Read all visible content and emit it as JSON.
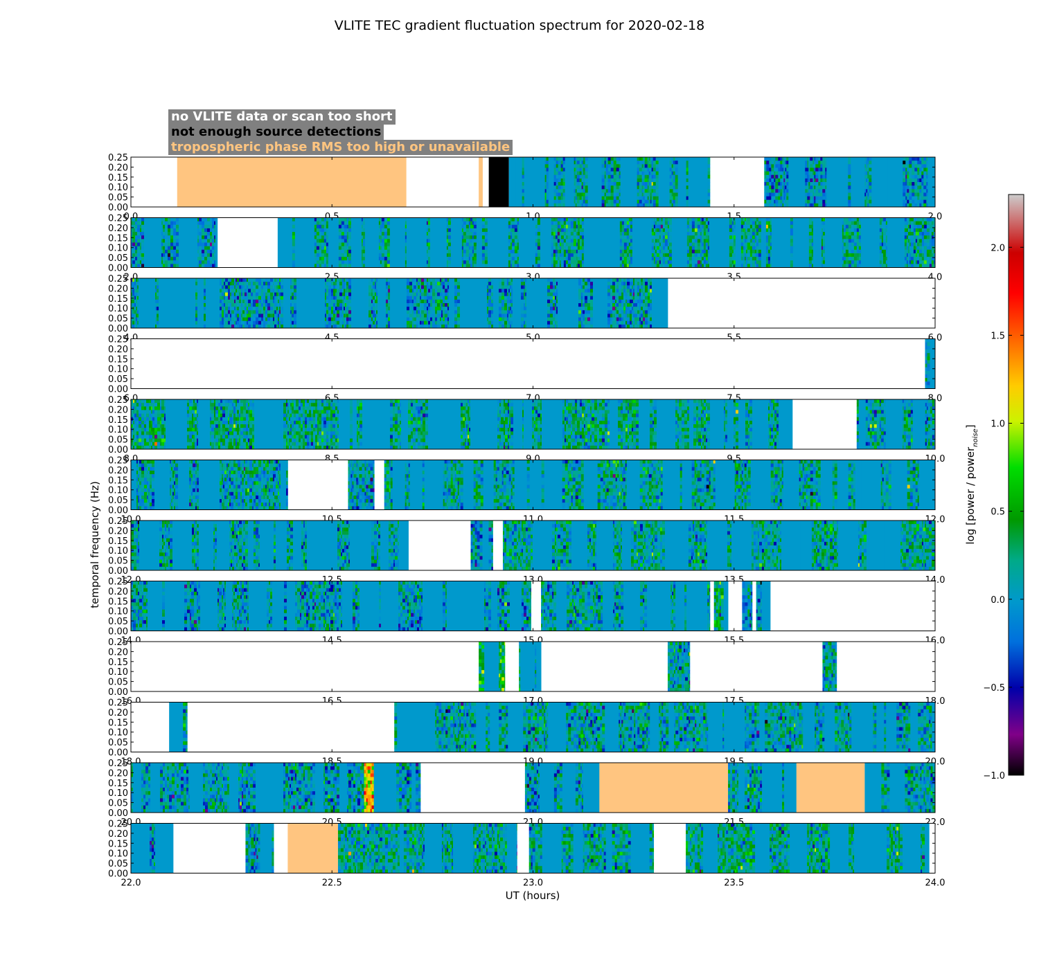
{
  "chart_data": {
    "type": "heatmap",
    "title": "VLITE TEC gradient fluctuation spectrum for 2020-02-18",
    "xlabel": "UT (hours)",
    "ylabel": "temporal frequency (Hz)",
    "ylim": [
      0,
      0.25
    ],
    "yticks": [
      "0.00",
      "0.05",
      "0.10",
      "0.15",
      "0.20",
      "0.25"
    ],
    "colorbar": {
      "label": "log [power / power",
      "label_sub": "noise",
      "label_end": "]",
      "range": [
        -1.0,
        2.3
      ],
      "ticks": [
        "−1.0",
        "−0.5",
        "0.0",
        "0.5",
        "1.0",
        "1.5",
        "2.0"
      ],
      "colormap": "nipy_spectral"
    },
    "legend": [
      {
        "label": "no VLITE data or scan too short",
        "text_color": "#ffffff",
        "fill": "#ffffff"
      },
      {
        "label": "not enough source detections",
        "text_color": "#000000",
        "fill": "#000000"
      },
      {
        "label": "tropospheric phase RMS too high or unavailable",
        "text_color": "#ffc580",
        "fill": "#ffc580"
      }
    ],
    "panels": [
      {
        "xlim": [
          0,
          2
        ],
        "xticks": [
          "0.0",
          "0.5",
          "1.0",
          "1.5",
          "2.0"
        ],
        "segments": [
          {
            "start": 0.0,
            "end": 0.115,
            "state": "none"
          },
          {
            "start": 0.115,
            "end": 0.685,
            "state": "tropo"
          },
          {
            "start": 0.685,
            "end": 0.865,
            "state": "none"
          },
          {
            "start": 0.865,
            "end": 0.875,
            "state": "tropo"
          },
          {
            "start": 0.875,
            "end": 0.89,
            "state": "none"
          },
          {
            "start": 0.89,
            "end": 0.94,
            "state": "nodet"
          },
          {
            "start": 0.94,
            "end": 1.44,
            "state": "data",
            "level": 0.1
          },
          {
            "start": 1.44,
            "end": 1.575,
            "state": "none"
          },
          {
            "start": 1.575,
            "end": 2.0,
            "state": "data",
            "level": 0.0
          }
        ]
      },
      {
        "xlim": [
          2,
          4
        ],
        "xticks": [
          "2.0",
          "2.5",
          "3.0",
          "3.5",
          "4.0"
        ],
        "segments": [
          {
            "start": 2.0,
            "end": 2.215,
            "state": "data",
            "level": 0.05
          },
          {
            "start": 2.215,
            "end": 2.365,
            "state": "none"
          },
          {
            "start": 2.365,
            "end": 4.0,
            "state": "data",
            "level": 0.15
          }
        ]
      },
      {
        "xlim": [
          4,
          6
        ],
        "xticks": [
          "4.0",
          "4.5",
          "5.0",
          "5.5",
          "6.0"
        ],
        "segments": [
          {
            "start": 4.0,
            "end": 5.335,
            "state": "data",
            "level": 0.05
          },
          {
            "start": 5.335,
            "end": 6.0,
            "state": "none"
          }
        ]
      },
      {
        "xlim": [
          6,
          8
        ],
        "xticks": [
          "6.0",
          "6.5",
          "7.0",
          "7.5",
          "8.0"
        ],
        "segments": [
          {
            "start": 6.0,
            "end": 7.975,
            "state": "none"
          },
          {
            "start": 7.975,
            "end": 8.0,
            "state": "data",
            "level": 0.1
          }
        ]
      },
      {
        "xlim": [
          8,
          10
        ],
        "xticks": [
          "8.0",
          "8.5",
          "9.0",
          "9.5",
          "10.0"
        ],
        "segments": [
          {
            "start": 8.0,
            "end": 9.645,
            "state": "data",
            "level": 0.2
          },
          {
            "start": 9.645,
            "end": 9.805,
            "state": "none"
          },
          {
            "start": 9.805,
            "end": 10.0,
            "state": "data",
            "level": 0.1
          }
        ]
      },
      {
        "xlim": [
          10,
          12
        ],
        "xticks": [
          "10.0",
          "10.5",
          "11.0",
          "11.5",
          "12.0"
        ],
        "segments": [
          {
            "start": 10.0,
            "end": 10.39,
            "state": "data",
            "level": 0.1
          },
          {
            "start": 10.39,
            "end": 10.54,
            "state": "none"
          },
          {
            "start": 10.54,
            "end": 10.605,
            "state": "data",
            "level": 0.0
          },
          {
            "start": 10.605,
            "end": 10.63,
            "state": "none"
          },
          {
            "start": 10.63,
            "end": 12.0,
            "state": "data",
            "level": 0.15
          }
        ]
      },
      {
        "xlim": [
          12,
          14
        ],
        "xticks": [
          "12.0",
          "12.5",
          "13.0",
          "13.5",
          "14.0"
        ],
        "segments": [
          {
            "start": 12.0,
            "end": 12.69,
            "state": "data",
            "level": 0.1
          },
          {
            "start": 12.69,
            "end": 12.845,
            "state": "none"
          },
          {
            "start": 12.845,
            "end": 12.9,
            "state": "data",
            "level": 0.0
          },
          {
            "start": 12.9,
            "end": 12.925,
            "state": "none"
          },
          {
            "start": 12.925,
            "end": 14.0,
            "state": "data",
            "level": 0.15
          }
        ]
      },
      {
        "xlim": [
          14,
          16
        ],
        "xticks": [
          "14.0",
          "14.5",
          "15.0",
          "15.5",
          "16.0"
        ],
        "segments": [
          {
            "start": 14.0,
            "end": 14.995,
            "state": "data",
            "level": 0.05
          },
          {
            "start": 14.995,
            "end": 15.02,
            "state": "none"
          },
          {
            "start": 15.02,
            "end": 15.44,
            "state": "data",
            "level": 0.1
          },
          {
            "start": 15.44,
            "end": 15.45,
            "state": "none"
          },
          {
            "start": 15.45,
            "end": 15.485,
            "state": "data",
            "level": 0.3
          },
          {
            "start": 15.485,
            "end": 15.52,
            "state": "none"
          },
          {
            "start": 15.52,
            "end": 15.545,
            "state": "data",
            "level": 0.0
          },
          {
            "start": 15.545,
            "end": 15.555,
            "state": "none"
          },
          {
            "start": 15.555,
            "end": 15.59,
            "state": "data",
            "level": 0.0
          },
          {
            "start": 15.59,
            "end": 16.0,
            "state": "none"
          }
        ]
      },
      {
        "xlim": [
          16,
          18
        ],
        "xticks": [
          "16.0",
          "16.5",
          "17.0",
          "17.5",
          "18.0"
        ],
        "segments": [
          {
            "start": 16.0,
            "end": 16.865,
            "state": "none"
          },
          {
            "start": 16.865,
            "end": 16.93,
            "state": "data",
            "level": 0.5
          },
          {
            "start": 16.93,
            "end": 16.965,
            "state": "none"
          },
          {
            "start": 16.965,
            "end": 17.02,
            "state": "data",
            "level": 0.1
          },
          {
            "start": 17.02,
            "end": 17.335,
            "state": "none"
          },
          {
            "start": 17.335,
            "end": 17.39,
            "state": "data",
            "level": 0.1
          },
          {
            "start": 17.39,
            "end": 17.72,
            "state": "none"
          },
          {
            "start": 17.72,
            "end": 17.755,
            "state": "data",
            "level": 0.1
          },
          {
            "start": 17.755,
            "end": 18.0,
            "state": "none"
          }
        ]
      },
      {
        "xlim": [
          18,
          20
        ],
        "xticks": [
          "18.0",
          "18.5",
          "19.0",
          "19.5",
          "20.0"
        ],
        "segments": [
          {
            "start": 18.0,
            "end": 18.095,
            "state": "none"
          },
          {
            "start": 18.095,
            "end": 18.14,
            "state": "data",
            "level": 0.2
          },
          {
            "start": 18.14,
            "end": 18.655,
            "state": "none"
          },
          {
            "start": 18.655,
            "end": 20.0,
            "state": "data",
            "level": 0.1
          }
        ]
      },
      {
        "xlim": [
          20,
          22
        ],
        "xticks": [
          "20.0",
          "20.5",
          "21.0",
          "21.5",
          "22.0"
        ],
        "segments": [
          {
            "start": 20.0,
            "end": 20.58,
            "state": "data",
            "level": 0.05
          },
          {
            "start": 20.58,
            "end": 20.66,
            "state": "data",
            "level": 1.2
          },
          {
            "start": 20.66,
            "end": 20.72,
            "state": "data",
            "level": 0.0
          },
          {
            "start": 20.72,
            "end": 20.98,
            "state": "none"
          },
          {
            "start": 20.98,
            "end": 21.165,
            "state": "data",
            "level": 0.05
          },
          {
            "start": 21.165,
            "end": 21.485,
            "state": "tropo"
          },
          {
            "start": 21.485,
            "end": 21.655,
            "state": "data",
            "level": 0.1
          },
          {
            "start": 21.655,
            "end": 21.825,
            "state": "tropo"
          },
          {
            "start": 21.825,
            "end": 22.0,
            "state": "data",
            "level": 0.1
          }
        ]
      },
      {
        "xlim": [
          22,
          24
        ],
        "xticks": [
          "22.0",
          "22.5",
          "23.0",
          "23.5",
          "24.0"
        ],
        "segments": [
          {
            "start": 22.0,
            "end": 22.105,
            "state": "data",
            "level": 0.0
          },
          {
            "start": 22.105,
            "end": 22.285,
            "state": "none"
          },
          {
            "start": 22.285,
            "end": 22.355,
            "state": "data",
            "level": 0.05
          },
          {
            "start": 22.355,
            "end": 22.39,
            "state": "none"
          },
          {
            "start": 22.39,
            "end": 22.515,
            "state": "tropo"
          },
          {
            "start": 22.515,
            "end": 22.96,
            "state": "data",
            "level": 0.15
          },
          {
            "start": 22.96,
            "end": 22.99,
            "state": "none"
          },
          {
            "start": 22.99,
            "end": 23.3,
            "state": "data",
            "level": 0.15
          },
          {
            "start": 23.3,
            "end": 23.38,
            "state": "none"
          },
          {
            "start": 23.38,
            "end": 23.985,
            "state": "data",
            "level": 0.2
          },
          {
            "start": 23.985,
            "end": 24.0,
            "state": "none"
          }
        ]
      }
    ]
  }
}
